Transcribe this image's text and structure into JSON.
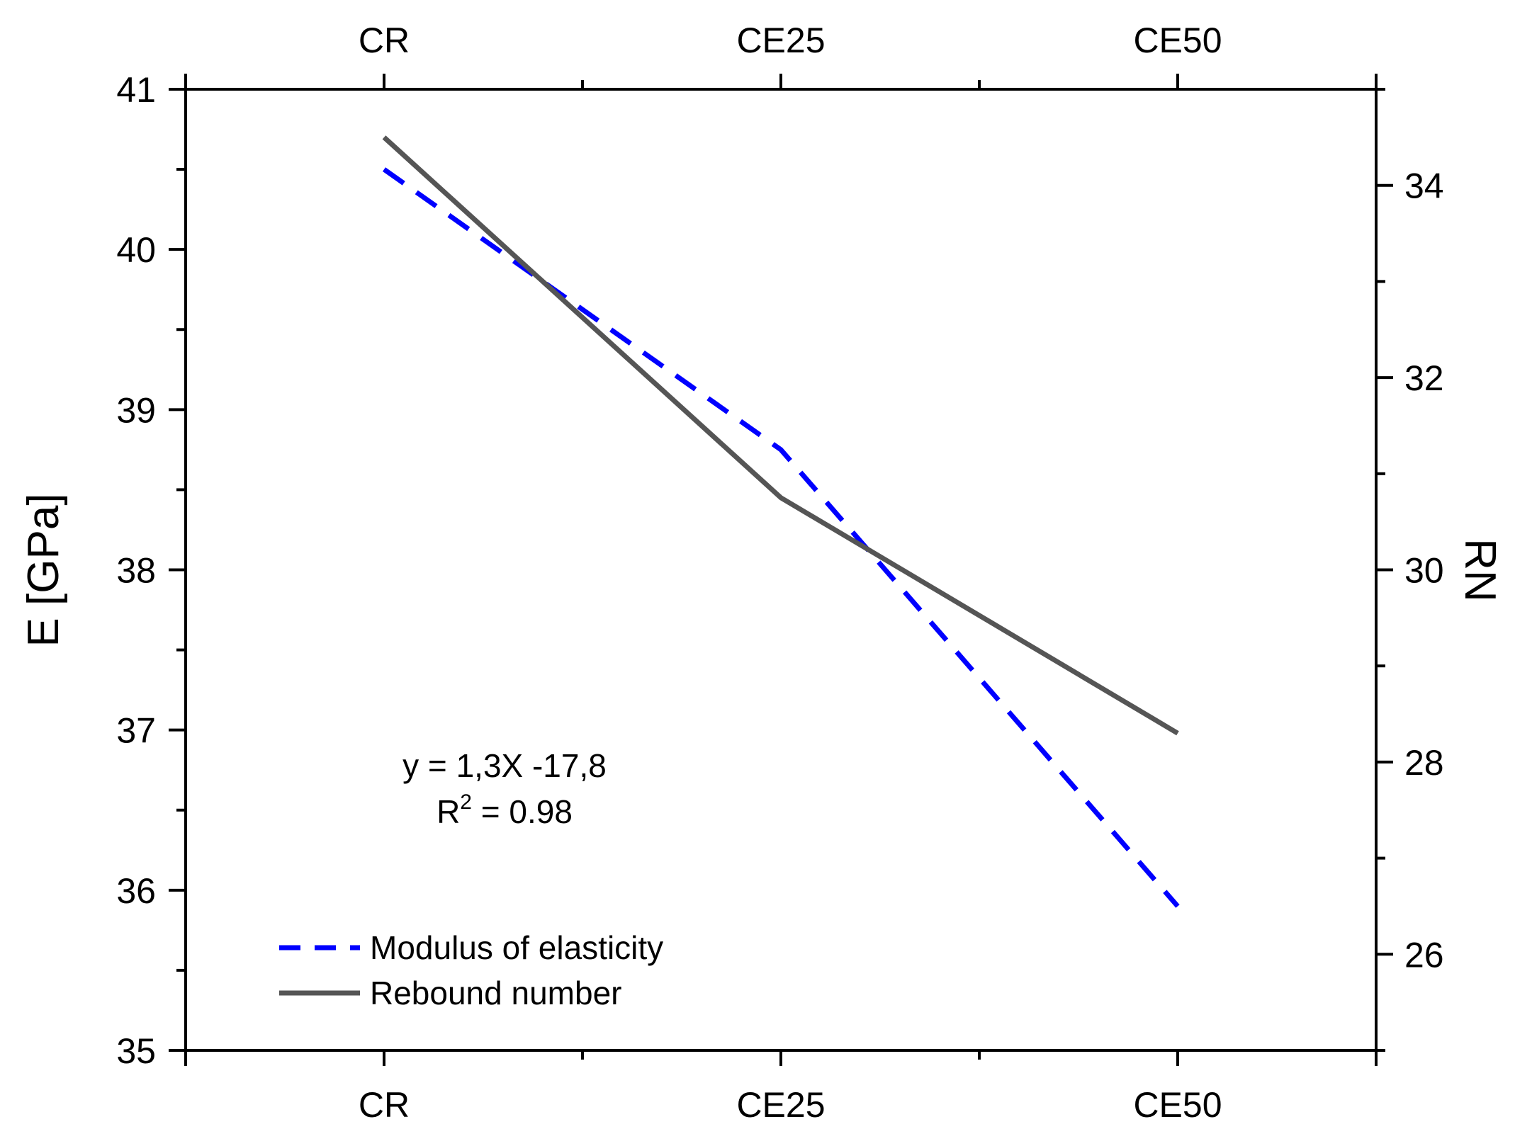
{
  "chart_data": {
    "type": "line",
    "categories": [
      "CR",
      "CE25",
      "CE50"
    ],
    "series": [
      {
        "name": "Modulus of elasticity",
        "axis": "left",
        "style": "dashed",
        "color": "#0000ff",
        "values": [
          40.5,
          38.75,
          35.9
        ]
      },
      {
        "name": "Rebound number",
        "axis": "right",
        "style": "solid",
        "color": "#555555",
        "values": [
          34.5,
          30.75,
          28.3
        ]
      }
    ],
    "ylabel": "E [GPa]",
    "y2label": "RN",
    "ylim": [
      35,
      41
    ],
    "y2lim": [
      25,
      35
    ],
    "yticks": [
      "35",
      "36",
      "37",
      "38",
      "39",
      "40",
      "41"
    ],
    "y2ticks": [
      "26",
      "28",
      "30",
      "32",
      "34"
    ],
    "annotation": {
      "equation": "y = 1,3X -17,8",
      "r2_prefix": "R",
      "r2_sup": "2",
      "r2_value": " = 0.98"
    },
    "legend_position": "bottom-left"
  }
}
